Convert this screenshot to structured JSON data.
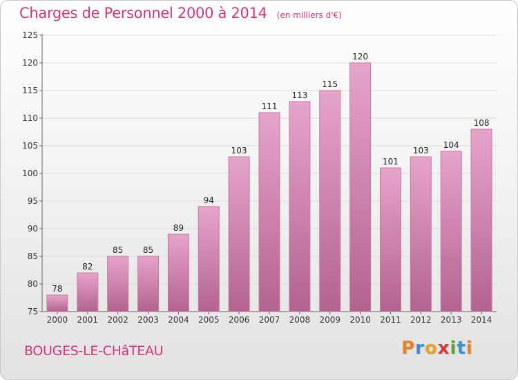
{
  "header": {
    "title": "Charges de Personnel 2000 à 2014",
    "unit": "(en milliers d'€)"
  },
  "footer": {
    "place": "BOUGES-LE-CHâTEAU",
    "logo_letters": [
      "P",
      "r",
      "o",
      "x",
      "i",
      "t",
      "i"
    ],
    "logo_colors": [
      "#e8822a",
      "#3a8fd6",
      "#e8a320",
      "#d23a3a",
      "#5aa83a",
      "#3a8fd6",
      "#e8822a"
    ]
  },
  "chart_data": {
    "type": "bar",
    "title": "Charges de Personnel 2000 à 2014",
    "subtitle": "(en milliers d'€)",
    "xlabel": "",
    "ylabel": "",
    "categories": [
      "2000",
      "2001",
      "2002",
      "2003",
      "2004",
      "2005",
      "2006",
      "2007",
      "2008",
      "2009",
      "2010",
      "2011",
      "2012",
      "2013",
      "2014"
    ],
    "values": [
      78,
      82,
      85,
      85,
      89,
      94,
      103,
      111,
      113,
      115,
      120,
      101,
      103,
      104,
      108
    ],
    "ylim": [
      75,
      125
    ],
    "yticks": [
      75,
      80,
      85,
      90,
      95,
      100,
      105,
      110,
      115,
      120,
      125
    ],
    "grid": true,
    "bar_color": "#d77fb3"
  }
}
